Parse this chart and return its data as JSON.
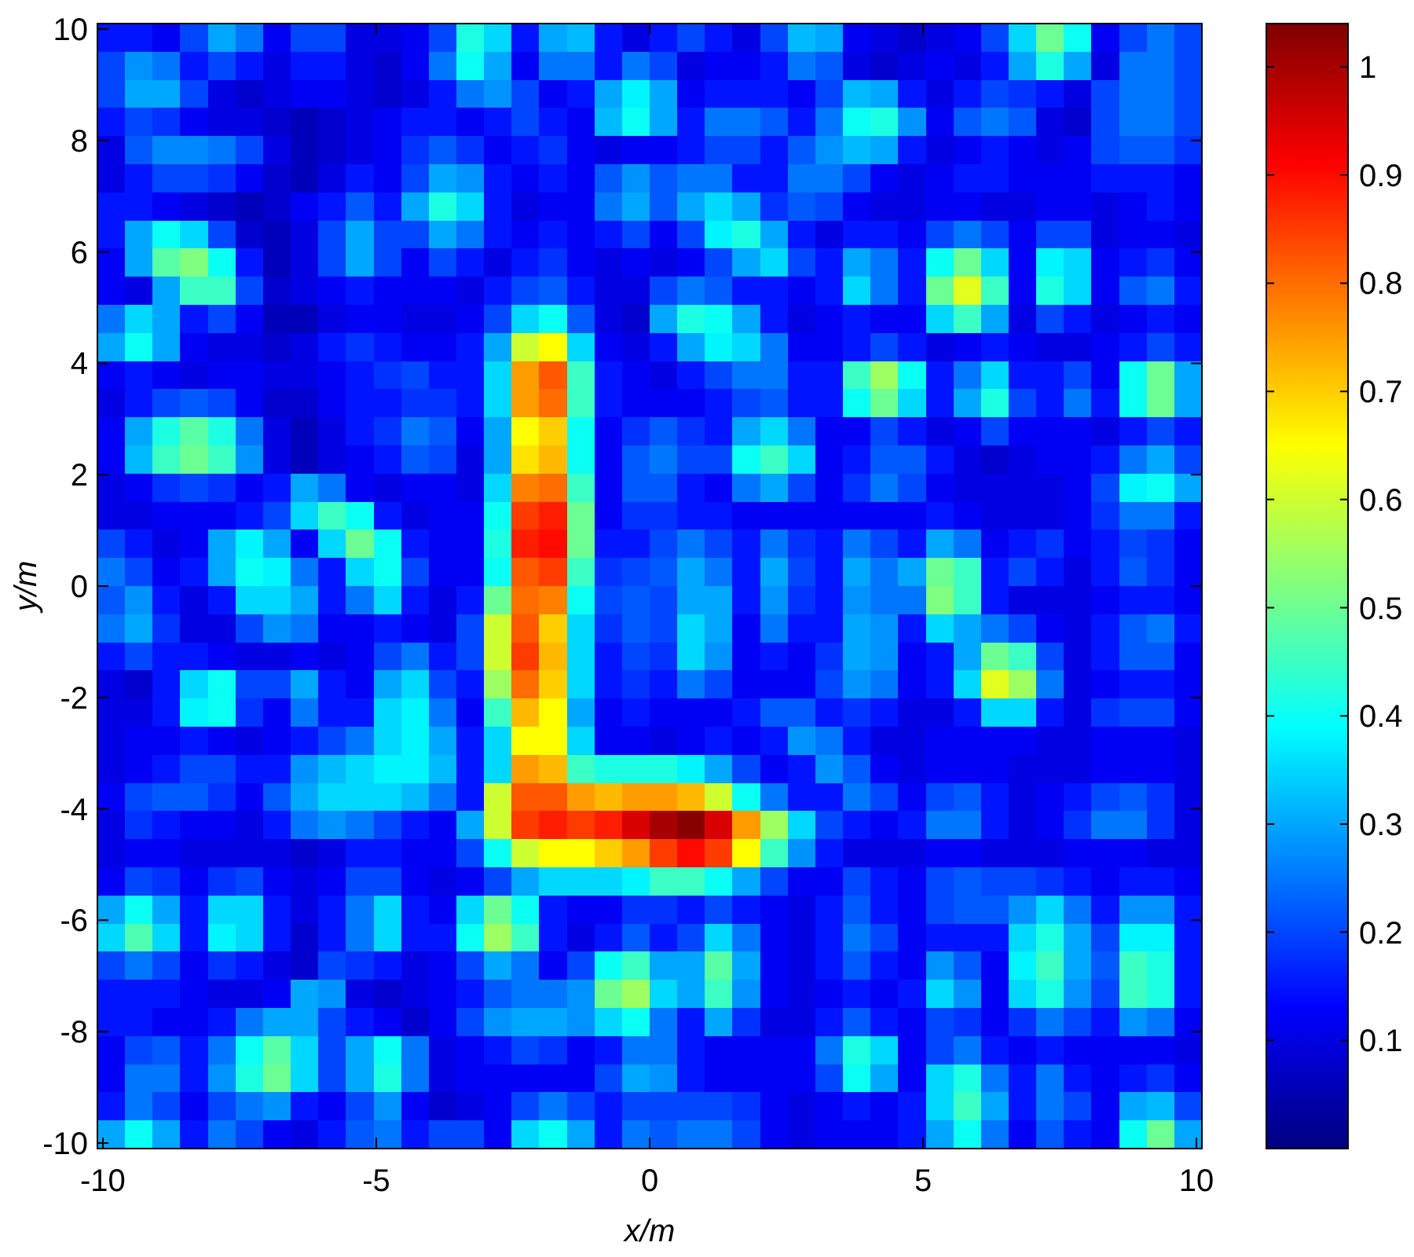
{
  "chart_data": {
    "type": "heatmap",
    "xlabel": "x/m",
    "ylabel": "y/m",
    "xlim": [
      -10.1,
      10.1
    ],
    "ylim": [
      -10.1,
      10.1
    ],
    "xticks": [
      -10,
      -5,
      0,
      5,
      10
    ],
    "yticks": [
      -10,
      -8,
      -6,
      -4,
      -2,
      0,
      2,
      4,
      6,
      8,
      10
    ],
    "clim": [
      0,
      1.04
    ],
    "cticks": [
      0.1,
      0.2,
      0.3,
      0.4,
      0.5,
      0.6,
      0.7,
      0.8,
      0.9,
      1
    ],
    "cells": [
      [
        0.15,
        0.15,
        0.12,
        0.2,
        0.3,
        0.25,
        0.12,
        0.2,
        0.2,
        0.1,
        0.1,
        0.12,
        0.2,
        0.42,
        0.35,
        0.15,
        0.3,
        0.32,
        0.15,
        0.1,
        0.15,
        0.2,
        0.15,
        0.1,
        0.2,
        0.32,
        0.3,
        0.12,
        0.1,
        0.08,
        0.1,
        0.12,
        0.2,
        0.35,
        0.5,
        0.4,
        0.12,
        0.2,
        0.25,
        0.2
      ],
      [
        0.2,
        0.28,
        0.25,
        0.15,
        0.2,
        0.15,
        0.1,
        0.15,
        0.15,
        0.1,
        0.08,
        0.12,
        0.25,
        0.4,
        0.3,
        0.12,
        0.25,
        0.25,
        0.15,
        0.25,
        0.2,
        0.1,
        0.12,
        0.12,
        0.15,
        0.25,
        0.22,
        0.1,
        0.08,
        0.1,
        0.12,
        0.1,
        0.15,
        0.3,
        0.42,
        0.3,
        0.1,
        0.25,
        0.25,
        0.2
      ],
      [
        0.2,
        0.3,
        0.3,
        0.2,
        0.1,
        0.08,
        0.1,
        0.12,
        0.12,
        0.1,
        0.08,
        0.1,
        0.15,
        0.25,
        0.28,
        0.2,
        0.12,
        0.15,
        0.3,
        0.38,
        0.3,
        0.12,
        0.15,
        0.15,
        0.15,
        0.12,
        0.2,
        0.32,
        0.3,
        0.15,
        0.1,
        0.15,
        0.2,
        0.18,
        0.15,
        0.1,
        0.2,
        0.25,
        0.25,
        0.2
      ],
      [
        0.15,
        0.2,
        0.18,
        0.12,
        0.1,
        0.1,
        0.08,
        0.06,
        0.08,
        0.1,
        0.12,
        0.15,
        0.15,
        0.12,
        0.15,
        0.2,
        0.15,
        0.12,
        0.32,
        0.4,
        0.3,
        0.15,
        0.25,
        0.25,
        0.22,
        0.15,
        0.25,
        0.4,
        0.42,
        0.28,
        0.12,
        0.22,
        0.25,
        0.22,
        0.1,
        0.08,
        0.2,
        0.25,
        0.25,
        0.2
      ],
      [
        0.1,
        0.22,
        0.27,
        0.27,
        0.25,
        0.2,
        0.1,
        0.06,
        0.08,
        0.1,
        0.12,
        0.18,
        0.22,
        0.18,
        0.12,
        0.15,
        0.18,
        0.12,
        0.1,
        0.12,
        0.12,
        0.15,
        0.2,
        0.2,
        0.15,
        0.22,
        0.28,
        0.32,
        0.3,
        0.15,
        0.1,
        0.12,
        0.15,
        0.12,
        0.1,
        0.12,
        0.2,
        0.22,
        0.22,
        0.18
      ],
      [
        0.1,
        0.15,
        0.2,
        0.2,
        0.18,
        0.12,
        0.08,
        0.06,
        0.1,
        0.15,
        0.12,
        0.2,
        0.3,
        0.28,
        0.15,
        0.12,
        0.15,
        0.12,
        0.22,
        0.28,
        0.22,
        0.25,
        0.25,
        0.15,
        0.15,
        0.25,
        0.25,
        0.2,
        0.12,
        0.1,
        0.12,
        0.15,
        0.15,
        0.12,
        0.12,
        0.12,
        0.15,
        0.15,
        0.15,
        0.12
      ],
      [
        0.15,
        0.15,
        0.12,
        0.1,
        0.08,
        0.06,
        0.08,
        0.12,
        0.15,
        0.22,
        0.15,
        0.3,
        0.42,
        0.35,
        0.15,
        0.1,
        0.12,
        0.12,
        0.25,
        0.3,
        0.22,
        0.3,
        0.35,
        0.3,
        0.18,
        0.22,
        0.2,
        0.12,
        0.1,
        0.1,
        0.12,
        0.12,
        0.1,
        0.1,
        0.12,
        0.12,
        0.1,
        0.12,
        0.15,
        0.12
      ],
      [
        0.15,
        0.3,
        0.4,
        0.35,
        0.2,
        0.08,
        0.06,
        0.1,
        0.2,
        0.3,
        0.2,
        0.2,
        0.3,
        0.25,
        0.15,
        0.12,
        0.15,
        0.12,
        0.15,
        0.2,
        0.12,
        0.2,
        0.38,
        0.42,
        0.3,
        0.15,
        0.1,
        0.15,
        0.15,
        0.12,
        0.2,
        0.25,
        0.2,
        0.12,
        0.2,
        0.2,
        0.1,
        0.12,
        0.12,
        0.1
      ],
      [
        0.12,
        0.3,
        0.48,
        0.52,
        0.4,
        0.15,
        0.06,
        0.1,
        0.2,
        0.3,
        0.2,
        0.12,
        0.2,
        0.15,
        0.1,
        0.15,
        0.18,
        0.12,
        0.1,
        0.12,
        0.1,
        0.12,
        0.2,
        0.3,
        0.35,
        0.2,
        0.15,
        0.3,
        0.25,
        0.15,
        0.4,
        0.5,
        0.35,
        0.12,
        0.38,
        0.35,
        0.12,
        0.15,
        0.18,
        0.12
      ],
      [
        0.12,
        0.1,
        0.3,
        0.45,
        0.45,
        0.2,
        0.08,
        0.1,
        0.12,
        0.15,
        0.12,
        0.12,
        0.12,
        0.1,
        0.15,
        0.2,
        0.22,
        0.15,
        0.1,
        0.1,
        0.2,
        0.25,
        0.22,
        0.15,
        0.15,
        0.12,
        0.15,
        0.35,
        0.25,
        0.15,
        0.5,
        0.62,
        0.45,
        0.12,
        0.42,
        0.35,
        0.12,
        0.22,
        0.25,
        0.15
      ],
      [
        0.25,
        0.35,
        0.3,
        0.15,
        0.2,
        0.12,
        0.06,
        0.06,
        0.1,
        0.12,
        0.12,
        0.1,
        0.1,
        0.12,
        0.2,
        0.35,
        0.4,
        0.22,
        0.1,
        0.08,
        0.3,
        0.42,
        0.4,
        0.3,
        0.15,
        0.1,
        0.12,
        0.15,
        0.12,
        0.12,
        0.35,
        0.45,
        0.3,
        0.1,
        0.2,
        0.15,
        0.1,
        0.12,
        0.15,
        0.12
      ],
      [
        0.3,
        0.4,
        0.3,
        0.12,
        0.1,
        0.1,
        0.08,
        0.1,
        0.15,
        0.18,
        0.15,
        0.12,
        0.12,
        0.15,
        0.3,
        0.6,
        0.65,
        0.35,
        0.12,
        0.1,
        0.15,
        0.3,
        0.38,
        0.35,
        0.25,
        0.12,
        0.12,
        0.15,
        0.2,
        0.15,
        0.1,
        0.12,
        0.15,
        0.12,
        0.1,
        0.1,
        0.12,
        0.15,
        0.2,
        0.15
      ],
      [
        0.12,
        0.15,
        0.12,
        0.1,
        0.12,
        0.12,
        0.1,
        0.1,
        0.12,
        0.15,
        0.18,
        0.2,
        0.15,
        0.15,
        0.35,
        0.75,
        0.82,
        0.45,
        0.15,
        0.12,
        0.1,
        0.15,
        0.2,
        0.25,
        0.25,
        0.15,
        0.15,
        0.45,
        0.55,
        0.4,
        0.15,
        0.25,
        0.35,
        0.15,
        0.15,
        0.2,
        0.12,
        0.4,
        0.5,
        0.3
      ],
      [
        0.1,
        0.15,
        0.2,
        0.22,
        0.2,
        0.12,
        0.08,
        0.08,
        0.12,
        0.15,
        0.15,
        0.18,
        0.18,
        0.15,
        0.35,
        0.75,
        0.8,
        0.45,
        0.15,
        0.12,
        0.12,
        0.12,
        0.15,
        0.2,
        0.22,
        0.15,
        0.15,
        0.4,
        0.5,
        0.35,
        0.15,
        0.3,
        0.42,
        0.2,
        0.15,
        0.25,
        0.15,
        0.4,
        0.5,
        0.3
      ],
      [
        0.12,
        0.3,
        0.42,
        0.48,
        0.42,
        0.25,
        0.1,
        0.06,
        0.1,
        0.15,
        0.18,
        0.25,
        0.22,
        0.12,
        0.3,
        0.65,
        0.7,
        0.4,
        0.12,
        0.18,
        0.22,
        0.18,
        0.15,
        0.3,
        0.35,
        0.25,
        0.12,
        0.12,
        0.2,
        0.15,
        0.1,
        0.12,
        0.2,
        0.12,
        0.12,
        0.12,
        0.1,
        0.15,
        0.2,
        0.15
      ],
      [
        0.12,
        0.32,
        0.45,
        0.5,
        0.45,
        0.28,
        0.1,
        0.06,
        0.1,
        0.12,
        0.15,
        0.22,
        0.2,
        0.1,
        0.3,
        0.68,
        0.72,
        0.4,
        0.12,
        0.22,
        0.25,
        0.2,
        0.2,
        0.4,
        0.45,
        0.35,
        0.12,
        0.15,
        0.22,
        0.22,
        0.15,
        0.1,
        0.08,
        0.1,
        0.12,
        0.12,
        0.15,
        0.25,
        0.3,
        0.2
      ],
      [
        0.1,
        0.12,
        0.18,
        0.2,
        0.18,
        0.12,
        0.15,
        0.3,
        0.25,
        0.12,
        0.1,
        0.12,
        0.12,
        0.1,
        0.35,
        0.78,
        0.8,
        0.45,
        0.12,
        0.22,
        0.22,
        0.15,
        0.12,
        0.25,
        0.3,
        0.2,
        0.12,
        0.18,
        0.25,
        0.2,
        0.12,
        0.1,
        0.1,
        0.1,
        0.1,
        0.12,
        0.2,
        0.38,
        0.4,
        0.3
      ],
      [
        0.1,
        0.1,
        0.12,
        0.12,
        0.12,
        0.15,
        0.2,
        0.35,
        0.45,
        0.4,
        0.15,
        0.1,
        0.12,
        0.12,
        0.4,
        0.85,
        0.88,
        0.5,
        0.12,
        0.18,
        0.18,
        0.15,
        0.15,
        0.12,
        0.12,
        0.12,
        0.12,
        0.12,
        0.12,
        0.12,
        0.15,
        0.12,
        0.1,
        0.1,
        0.1,
        0.12,
        0.18,
        0.25,
        0.25,
        0.15
      ],
      [
        0.2,
        0.15,
        0.1,
        0.12,
        0.3,
        0.38,
        0.3,
        0.12,
        0.35,
        0.5,
        0.4,
        0.15,
        0.12,
        0.12,
        0.42,
        0.88,
        0.9,
        0.5,
        0.15,
        0.15,
        0.2,
        0.25,
        0.2,
        0.15,
        0.25,
        0.18,
        0.15,
        0.25,
        0.2,
        0.15,
        0.3,
        0.25,
        0.12,
        0.15,
        0.18,
        0.12,
        0.15,
        0.2,
        0.18,
        0.12
      ],
      [
        0.25,
        0.2,
        0.12,
        0.15,
        0.3,
        0.4,
        0.38,
        0.25,
        0.15,
        0.35,
        0.4,
        0.2,
        0.12,
        0.12,
        0.4,
        0.82,
        0.85,
        0.45,
        0.18,
        0.2,
        0.22,
        0.3,
        0.25,
        0.15,
        0.3,
        0.2,
        0.15,
        0.3,
        0.25,
        0.3,
        0.5,
        0.45,
        0.15,
        0.2,
        0.15,
        0.1,
        0.15,
        0.22,
        0.18,
        0.12
      ],
      [
        0.22,
        0.28,
        0.15,
        0.1,
        0.15,
        0.35,
        0.35,
        0.3,
        0.15,
        0.25,
        0.35,
        0.15,
        0.1,
        0.15,
        0.5,
        0.8,
        0.78,
        0.4,
        0.2,
        0.22,
        0.2,
        0.3,
        0.3,
        0.15,
        0.28,
        0.18,
        0.15,
        0.28,
        0.25,
        0.25,
        0.52,
        0.45,
        0.15,
        0.1,
        0.1,
        0.1,
        0.12,
        0.15,
        0.15,
        0.12
      ],
      [
        0.25,
        0.3,
        0.18,
        0.1,
        0.1,
        0.2,
        0.28,
        0.25,
        0.12,
        0.12,
        0.15,
        0.12,
        0.1,
        0.2,
        0.6,
        0.82,
        0.7,
        0.35,
        0.18,
        0.22,
        0.2,
        0.35,
        0.3,
        0.12,
        0.25,
        0.15,
        0.15,
        0.3,
        0.28,
        0.15,
        0.35,
        0.3,
        0.25,
        0.2,
        0.12,
        0.1,
        0.15,
        0.22,
        0.25,
        0.15
      ],
      [
        0.15,
        0.2,
        0.15,
        0.15,
        0.12,
        0.1,
        0.1,
        0.12,
        0.1,
        0.12,
        0.2,
        0.25,
        0.15,
        0.2,
        0.6,
        0.85,
        0.72,
        0.35,
        0.15,
        0.2,
        0.18,
        0.35,
        0.28,
        0.12,
        0.15,
        0.12,
        0.18,
        0.3,
        0.28,
        0.12,
        0.15,
        0.3,
        0.5,
        0.45,
        0.2,
        0.1,
        0.15,
        0.22,
        0.22,
        0.12
      ],
      [
        0.1,
        0.08,
        0.15,
        0.35,
        0.4,
        0.2,
        0.2,
        0.3,
        0.15,
        0.12,
        0.3,
        0.35,
        0.2,
        0.15,
        0.55,
        0.8,
        0.7,
        0.35,
        0.15,
        0.18,
        0.15,
        0.25,
        0.2,
        0.12,
        0.12,
        0.12,
        0.2,
        0.28,
        0.25,
        0.12,
        0.15,
        0.35,
        0.62,
        0.55,
        0.25,
        0.1,
        0.12,
        0.15,
        0.15,
        0.12
      ],
      [
        0.1,
        0.1,
        0.15,
        0.38,
        0.4,
        0.18,
        0.12,
        0.25,
        0.15,
        0.15,
        0.35,
        0.38,
        0.25,
        0.12,
        0.45,
        0.72,
        0.65,
        0.3,
        0.12,
        0.15,
        0.12,
        0.12,
        0.12,
        0.15,
        0.22,
        0.22,
        0.15,
        0.18,
        0.15,
        0.1,
        0.1,
        0.15,
        0.35,
        0.35,
        0.15,
        0.1,
        0.18,
        0.2,
        0.2,
        0.12
      ],
      [
        0.1,
        0.12,
        0.12,
        0.15,
        0.12,
        0.1,
        0.12,
        0.15,
        0.2,
        0.25,
        0.35,
        0.38,
        0.3,
        0.15,
        0.35,
        0.65,
        0.65,
        0.35,
        0.12,
        0.12,
        0.1,
        0.12,
        0.15,
        0.12,
        0.15,
        0.28,
        0.25,
        0.15,
        0.1,
        0.1,
        0.12,
        0.12,
        0.12,
        0.12,
        0.1,
        0.1,
        0.12,
        0.12,
        0.12,
        0.1
      ],
      [
        0.1,
        0.12,
        0.15,
        0.2,
        0.2,
        0.15,
        0.15,
        0.28,
        0.32,
        0.35,
        0.38,
        0.38,
        0.32,
        0.15,
        0.35,
        0.75,
        0.72,
        0.45,
        0.42,
        0.42,
        0.42,
        0.38,
        0.3,
        0.2,
        0.12,
        0.15,
        0.28,
        0.22,
        0.12,
        0.1,
        0.12,
        0.12,
        0.12,
        0.1,
        0.1,
        0.1,
        0.12,
        0.12,
        0.12,
        0.1
      ],
      [
        0.12,
        0.2,
        0.22,
        0.22,
        0.18,
        0.12,
        0.22,
        0.3,
        0.35,
        0.35,
        0.35,
        0.32,
        0.25,
        0.15,
        0.6,
        0.82,
        0.82,
        0.75,
        0.72,
        0.75,
        0.75,
        0.72,
        0.6,
        0.4,
        0.25,
        0.15,
        0.15,
        0.25,
        0.2,
        0.12,
        0.2,
        0.22,
        0.15,
        0.1,
        0.12,
        0.15,
        0.2,
        0.22,
        0.18,
        0.1
      ],
      [
        0.1,
        0.18,
        0.15,
        0.12,
        0.12,
        0.1,
        0.15,
        0.25,
        0.28,
        0.25,
        0.2,
        0.15,
        0.12,
        0.3,
        0.6,
        0.85,
        0.88,
        0.85,
        0.88,
        0.95,
        1,
        1.03,
        0.95,
        0.75,
        0.55,
        0.35,
        0.2,
        0.15,
        0.12,
        0.15,
        0.25,
        0.25,
        0.15,
        0.1,
        0.12,
        0.18,
        0.25,
        0.25,
        0.18,
        0.1
      ],
      [
        0.1,
        0.12,
        0.12,
        0.1,
        0.1,
        0.1,
        0.1,
        0.08,
        0.1,
        0.15,
        0.15,
        0.12,
        0.12,
        0.2,
        0.4,
        0.6,
        0.65,
        0.65,
        0.7,
        0.75,
        0.85,
        0.9,
        0.85,
        0.65,
        0.45,
        0.28,
        0.15,
        0.1,
        0.1,
        0.1,
        0.12,
        0.12,
        0.1,
        0.1,
        0.1,
        0.12,
        0.12,
        0.12,
        0.1,
        0.1
      ],
      [
        0.12,
        0.2,
        0.18,
        0.12,
        0.18,
        0.2,
        0.12,
        0.1,
        0.12,
        0.2,
        0.2,
        0.12,
        0.1,
        0.12,
        0.2,
        0.3,
        0.35,
        0.35,
        0.35,
        0.38,
        0.45,
        0.45,
        0.4,
        0.3,
        0.2,
        0.12,
        0.12,
        0.2,
        0.15,
        0.12,
        0.2,
        0.22,
        0.2,
        0.2,
        0.18,
        0.15,
        0.12,
        0.15,
        0.15,
        0.12
      ],
      [
        0.3,
        0.4,
        0.3,
        0.15,
        0.35,
        0.35,
        0.15,
        0.1,
        0.15,
        0.25,
        0.35,
        0.15,
        0.12,
        0.35,
        0.5,
        0.4,
        0.15,
        0.12,
        0.12,
        0.18,
        0.18,
        0.15,
        0.2,
        0.15,
        0.12,
        0.1,
        0.15,
        0.22,
        0.15,
        0.12,
        0.2,
        0.22,
        0.22,
        0.28,
        0.35,
        0.25,
        0.15,
        0.28,
        0.28,
        0.15
      ],
      [
        0.35,
        0.47,
        0.35,
        0.15,
        0.38,
        0.35,
        0.15,
        0.08,
        0.15,
        0.25,
        0.35,
        0.15,
        0.15,
        0.4,
        0.55,
        0.45,
        0.15,
        0.1,
        0.15,
        0.22,
        0.15,
        0.2,
        0.35,
        0.25,
        0.12,
        0.1,
        0.15,
        0.25,
        0.2,
        0.12,
        0.15,
        0.15,
        0.15,
        0.35,
        0.42,
        0.3,
        0.2,
        0.38,
        0.38,
        0.15
      ],
      [
        0.2,
        0.25,
        0.2,
        0.12,
        0.18,
        0.15,
        0.1,
        0.08,
        0.2,
        0.18,
        0.15,
        0.1,
        0.12,
        0.2,
        0.3,
        0.25,
        0.12,
        0.2,
        0.4,
        0.45,
        0.3,
        0.3,
        0.48,
        0.3,
        0.12,
        0.1,
        0.15,
        0.22,
        0.15,
        0.12,
        0.28,
        0.22,
        0.12,
        0.38,
        0.45,
        0.3,
        0.22,
        0.45,
        0.42,
        0.15
      ],
      [
        0.15,
        0.15,
        0.15,
        0.12,
        0.1,
        0.1,
        0.12,
        0.3,
        0.28,
        0.1,
        0.08,
        0.1,
        0.12,
        0.15,
        0.22,
        0.25,
        0.25,
        0.28,
        0.5,
        0.55,
        0.35,
        0.3,
        0.45,
        0.28,
        0.12,
        0.1,
        0.12,
        0.15,
        0.12,
        0.15,
        0.35,
        0.28,
        0.12,
        0.35,
        0.42,
        0.28,
        0.2,
        0.45,
        0.42,
        0.15
      ],
      [
        0.15,
        0.15,
        0.12,
        0.12,
        0.15,
        0.25,
        0.3,
        0.3,
        0.2,
        0.15,
        0.12,
        0.08,
        0.12,
        0.2,
        0.28,
        0.3,
        0.3,
        0.28,
        0.35,
        0.4,
        0.25,
        0.15,
        0.3,
        0.18,
        0.1,
        0.1,
        0.15,
        0.22,
        0.15,
        0.12,
        0.2,
        0.18,
        0.12,
        0.18,
        0.25,
        0.2,
        0.15,
        0.28,
        0.25,
        0.12
      ],
      [
        0.12,
        0.2,
        0.22,
        0.15,
        0.25,
        0.4,
        0.48,
        0.35,
        0.2,
        0.3,
        0.4,
        0.25,
        0.1,
        0.12,
        0.15,
        0.2,
        0.18,
        0.12,
        0.15,
        0.25,
        0.25,
        0.15,
        0.12,
        0.12,
        0.12,
        0.12,
        0.25,
        0.42,
        0.35,
        0.12,
        0.2,
        0.25,
        0.15,
        0.12,
        0.15,
        0.12,
        0.12,
        0.12,
        0.12,
        0.1
      ],
      [
        0.12,
        0.25,
        0.25,
        0.15,
        0.28,
        0.42,
        0.5,
        0.35,
        0.2,
        0.3,
        0.42,
        0.25,
        0.1,
        0.12,
        0.12,
        0.12,
        0.12,
        0.12,
        0.2,
        0.3,
        0.28,
        0.15,
        0.12,
        0.12,
        0.12,
        0.12,
        0.2,
        0.4,
        0.3,
        0.12,
        0.35,
        0.42,
        0.25,
        0.15,
        0.25,
        0.15,
        0.12,
        0.15,
        0.18,
        0.12
      ],
      [
        0.15,
        0.25,
        0.2,
        0.12,
        0.2,
        0.25,
        0.28,
        0.15,
        0.12,
        0.2,
        0.28,
        0.12,
        0.08,
        0.1,
        0.12,
        0.2,
        0.25,
        0.2,
        0.15,
        0.2,
        0.2,
        0.2,
        0.2,
        0.18,
        0.12,
        0.1,
        0.12,
        0.15,
        0.12,
        0.15,
        0.35,
        0.45,
        0.3,
        0.15,
        0.25,
        0.2,
        0.12,
        0.3,
        0.32,
        0.2
      ],
      [
        0.3,
        0.4,
        0.3,
        0.15,
        0.25,
        0.2,
        0.12,
        0.1,
        0.15,
        0.22,
        0.25,
        0.15,
        0.2,
        0.2,
        0.12,
        0.35,
        0.4,
        0.3,
        0.15,
        0.25,
        0.22,
        0.25,
        0.25,
        0.2,
        0.12,
        0.1,
        0.12,
        0.12,
        0.12,
        0.15,
        0.3,
        0.4,
        0.25,
        0.12,
        0.22,
        0.15,
        0.12,
        0.4,
        0.5,
        0.3
      ]
    ]
  }
}
